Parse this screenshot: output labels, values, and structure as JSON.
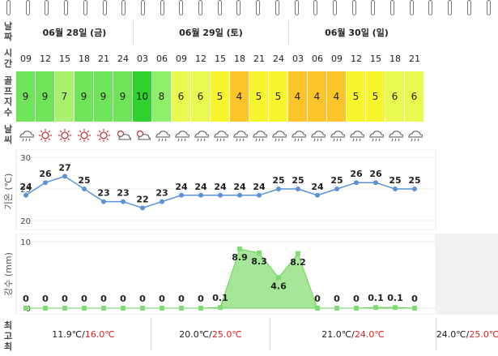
{
  "row_labels": {
    "date": "날\n짜",
    "time": "시\n간",
    "golf": "골\n프\n지\n수",
    "weather": "날\n씨",
    "temp_axis": "기온 (℃)",
    "rain_axis": "강수 (mm)",
    "minmax": "최\n고\n최"
  },
  "dates": [
    {
      "label": "06월 28일 (금)",
      "span": 6
    },
    {
      "label": "06월 29일 (토)",
      "span": 8
    },
    {
      "label": "06월 30일 (일)",
      "span": 7
    }
  ],
  "hours": [
    "09",
    "12",
    "15",
    "18",
    "21",
    "24",
    "03",
    "06",
    "09",
    "12",
    "15",
    "18",
    "21",
    "24",
    "03",
    "06",
    "09",
    "12",
    "15",
    "18",
    "21"
  ],
  "golf_index": [
    "9",
    "9",
    "7",
    "9",
    "9",
    "9",
    "10",
    "8",
    "6",
    "6",
    "5",
    "4",
    "5",
    "5",
    "4",
    "4",
    "4",
    "5",
    "5",
    "6",
    "6"
  ],
  "golf_colors": [
    "#6fe35a",
    "#6fe35a",
    "#a9f06e",
    "#6fe35a",
    "#6fe35a",
    "#6fe35a",
    "#2fd12f",
    "#8fee6a",
    "#e8fa50",
    "#e8fa50",
    "#f7f52d",
    "#fbc52a",
    "#f7f52d",
    "#f7f52d",
    "#fbc52a",
    "#fbc52a",
    "#fbc52a",
    "#f7f52d",
    "#f7f52d",
    "#e8fa50",
    "#e8fa50"
  ],
  "weather_icons": [
    "cloud-rain-icon",
    "sun-icon",
    "sun-icon",
    "sun-icon",
    "sun-icon",
    "partly-cloudy-icon",
    "partly-cloudy-icon",
    "cloud-rain-icon",
    "cloud-rain-icon",
    "cloud-rain-icon",
    "cloud-rain-icon",
    "cloud-rain-icon",
    "cloud-rain-icon",
    "cloud-rain-icon",
    "cloud-rain-icon",
    "cloud-rain-icon",
    "cloud-rain-icon",
    "cloud-rain-icon",
    "cloud-rain-icon",
    "cloud-rain-icon",
    "cloud-rain-icon"
  ],
  "chart_data": [
    {
      "type": "line",
      "ylabel": "기온 (℃)",
      "ylim": [
        20,
        30
      ],
      "yticks": [
        20,
        25,
        30
      ],
      "x": [
        "09",
        "12",
        "15",
        "18",
        "21",
        "24",
        "03",
        "06",
        "09",
        "12",
        "15",
        "18",
        "21",
        "24",
        "03",
        "06",
        "09",
        "12",
        "15",
        "18",
        "21"
      ],
      "values": [
        24,
        26,
        27,
        25,
        23,
        23,
        22,
        23,
        24,
        24,
        24,
        24,
        24,
        25,
        25,
        24,
        25,
        26,
        26,
        25,
        25
      ],
      "color": "#5b92d6"
    },
    {
      "type": "area",
      "ylabel": "강수 (mm)",
      "ylim": [
        0,
        10
      ],
      "yticks": [
        0,
        10
      ],
      "x": [
        "09",
        "12",
        "15",
        "18",
        "21",
        "24",
        "03",
        "06",
        "09",
        "12",
        "15",
        "18",
        "21",
        "24",
        "03",
        "06",
        "09",
        "12",
        "15",
        "18",
        "21"
      ],
      "values": [
        0,
        0,
        0,
        0,
        0,
        0,
        0,
        0,
        0,
        0,
        0.1,
        8.9,
        8.3,
        4.6,
        8.2,
        0,
        0,
        0,
        0.1,
        0.1,
        0
      ],
      "labels": [
        "0",
        "0",
        "0",
        "0",
        "0",
        "0",
        "0",
        "0",
        "0",
        "0",
        "0.1",
        "8.9",
        "8.3",
        "4.6",
        "8.2",
        "0",
        "0",
        "0",
        "0.1",
        "0.1",
        "0"
      ],
      "color": "#7fdc6e"
    }
  ],
  "minmax": [
    {
      "low": "11.9℃",
      "sep": "/",
      "high": "16.0℃"
    },
    {
      "low": "20.0℃",
      "sep": "/",
      "high": "25.0℃"
    },
    {
      "low": "21.0℃",
      "sep": "/",
      "high": "24.0℃"
    },
    {
      "low": "24.0℃",
      "sep": "/",
      "high": "25.0℃"
    }
  ]
}
